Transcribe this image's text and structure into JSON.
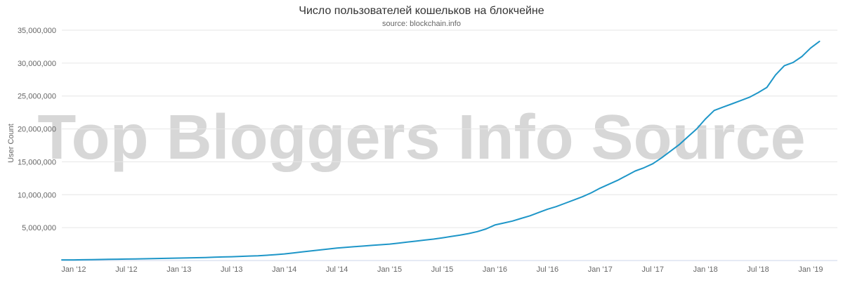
{
  "watermark": "Top Bloggers Info Source",
  "chart_data": {
    "type": "line",
    "title": "Число пользователей кошельков на блокчейне",
    "subtitle": "source: blockchain.info",
    "xlabel": "",
    "ylabel": "User Count",
    "ylim": [
      0,
      35000000
    ],
    "grid": "horizontal-only",
    "legend": "none",
    "line_color": "#1e96c8",
    "grid_color": "#e6e6e6",
    "axis_color": "#ccd6eb",
    "tick_label_color": "#666666",
    "y_ticks": [
      {
        "value": 5000000,
        "label": "5,000,000"
      },
      {
        "value": 10000000,
        "label": "10,000,000"
      },
      {
        "value": 15000000,
        "label": "15,000,000"
      },
      {
        "value": 20000000,
        "label": "20,000,000"
      },
      {
        "value": 25000000,
        "label": "25,000,000"
      },
      {
        "value": 30000000,
        "label": "30,000,000"
      },
      {
        "value": 35000000,
        "label": "35,000,000"
      }
    ],
    "x_tick_labels": [
      "Jan '12",
      "Jul '12",
      "Jan '13",
      "Jul '13",
      "Jan '14",
      "Jul '14",
      "Jan '15",
      "Jul '15",
      "Jan '16",
      "Jul '16",
      "Jan '17",
      "Jul '17",
      "Jan '18",
      "Jul '18",
      "Jan '19"
    ],
    "x_tick_every_n_months": 6,
    "x_start": "2012-01",
    "x_interval": "monthly",
    "series": [
      {
        "name": "User Count",
        "values": [
          100000,
          120000,
          140000,
          160000,
          180000,
          200000,
          220000,
          250000,
          270000,
          300000,
          320000,
          350000,
          370000,
          400000,
          430000,
          460000,
          500000,
          540000,
          580000,
          630000,
          680000,
          730000,
          800000,
          900000,
          1000000,
          1150000,
          1300000,
          1450000,
          1600000,
          1750000,
          1900000,
          2000000,
          2100000,
          2200000,
          2300000,
          2400000,
          2500000,
          2650000,
          2800000,
          2950000,
          3100000,
          3250000,
          3450000,
          3650000,
          3850000,
          4100000,
          4400000,
          4800000,
          5400000,
          5700000,
          6000000,
          6400000,
          6800000,
          7300000,
          7800000,
          8200000,
          8700000,
          9200000,
          9700000,
          10300000,
          11000000,
          11600000,
          12200000,
          12900000,
          13600000,
          14100000,
          14700000,
          15600000,
          16600000,
          17600000,
          18800000,
          20000000,
          21500000,
          22800000,
          23300000,
          23800000,
          24300000,
          24800000,
          25500000,
          26300000,
          28200000,
          29600000,
          30100000,
          31000000,
          32300000,
          33300000
        ]
      }
    ]
  }
}
